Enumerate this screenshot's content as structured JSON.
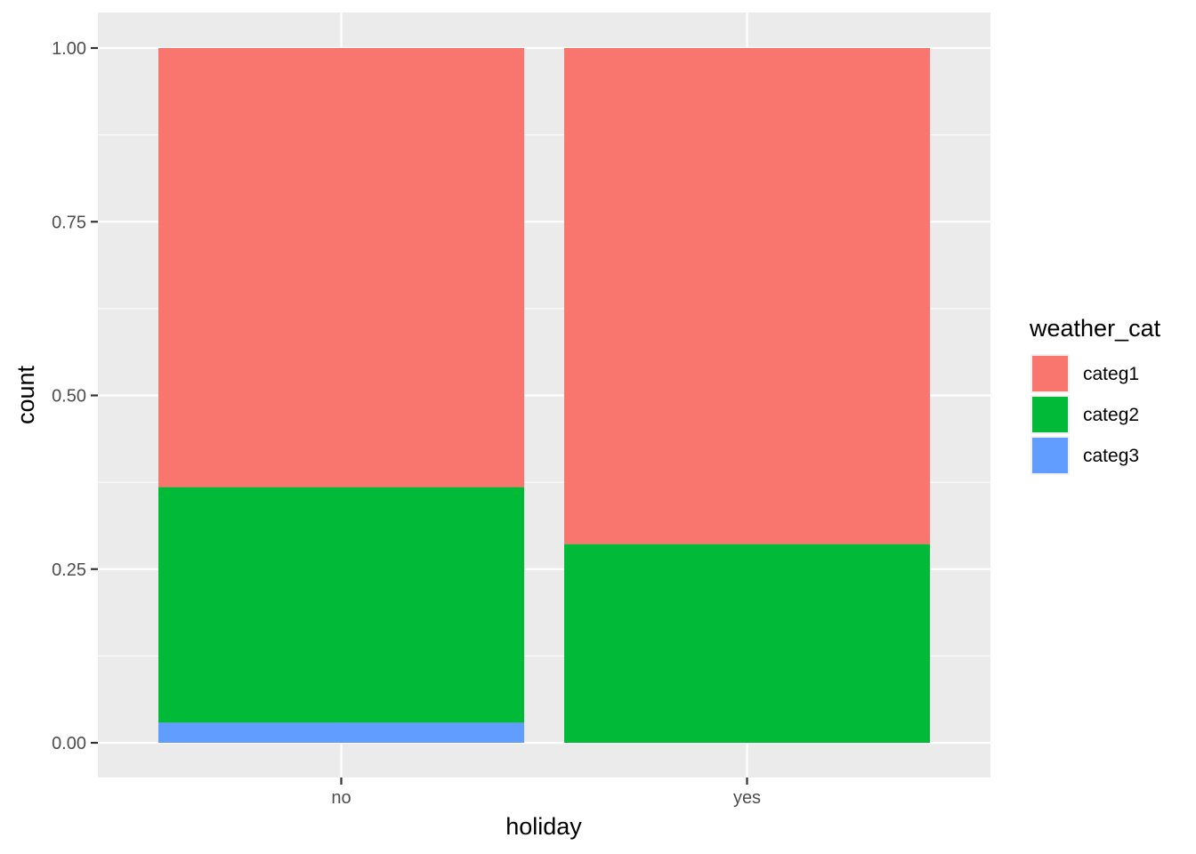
{
  "chart_data": {
    "type": "bar",
    "stacked": true,
    "categories": [
      "no",
      "yes"
    ],
    "series": [
      {
        "name": "categ1",
        "values": [
          0.632,
          0.714
        ],
        "color": "#F8766D"
      },
      {
        "name": "categ2",
        "values": [
          0.339,
          0.286
        ],
        "color": "#00BA38"
      },
      {
        "name": "categ3",
        "values": [
          0.029,
          0.0
        ],
        "color": "#619CFF"
      }
    ],
    "xlabel": "holiday",
    "ylabel": "count",
    "ylim": [
      0,
      1
    ],
    "yticks": [
      "0.00",
      "0.25",
      "0.50",
      "0.75",
      "1.00"
    ],
    "grid": true,
    "legend_title": "weather_cat",
    "legend_position": "right",
    "panel_background": "#EBEBEB"
  }
}
